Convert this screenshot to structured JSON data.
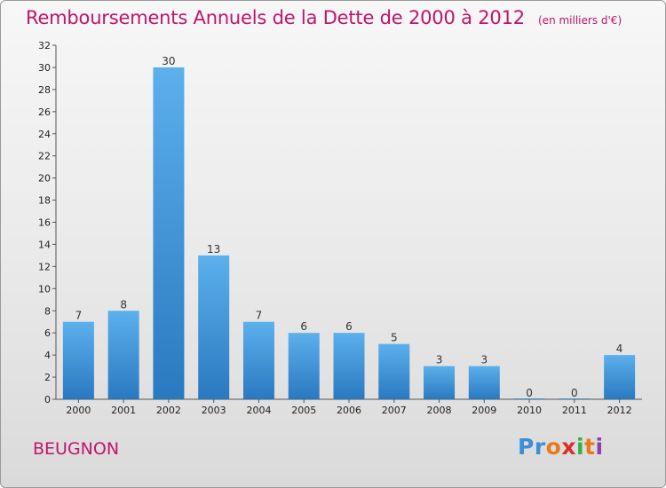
{
  "title": "Remboursements Annuels de la Dette de 2000 à 2012",
  "unit": "(en milliers d'€)",
  "place": "BEUGNON",
  "logo": {
    "text": "Proxiti",
    "colors": [
      "#3a8fd8",
      "#3a8fd8",
      "#e87a1d",
      "#e02b2b",
      "#2db34a",
      "#e87a1d",
      "#8b3fb0"
    ]
  },
  "colors": {
    "title": "#c01569",
    "bar_light": "#5aaeea",
    "bar_dark": "#2a7fc4"
  },
  "chart_data": {
    "type": "bar",
    "categories": [
      "2000",
      "2001",
      "2002",
      "2003",
      "2004",
      "2005",
      "2006",
      "2007",
      "2008",
      "2009",
      "2010",
      "2011",
      "2012"
    ],
    "values": [
      7,
      8,
      30,
      13,
      7,
      6,
      6,
      5,
      3,
      3,
      0,
      0,
      4
    ],
    "ylim": [
      0,
      32
    ],
    "yticks": [
      0,
      2,
      4,
      6,
      8,
      10,
      12,
      14,
      16,
      18,
      20,
      22,
      24,
      26,
      28,
      30,
      32
    ],
    "grid": false
  }
}
